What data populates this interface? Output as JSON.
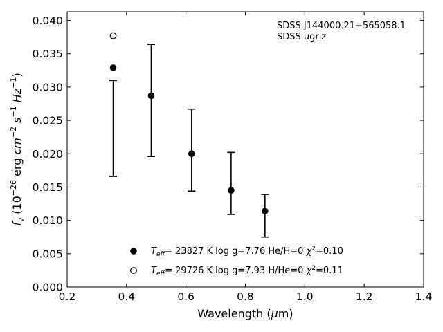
{
  "chart_data": {
    "type": "scatter",
    "xlabel": "Wavelength (μm)",
    "ylabel": "f_ν (10^-26 erg cm^-2 s^-1 Hz^-1)",
    "xlim": [
      0.2,
      1.4
    ],
    "ylim": [
      0.0,
      0.0413
    ],
    "x_ticks": [
      "0.2",
      "0.4",
      "0.6",
      "0.8",
      "1.0",
      "1.2",
      "1.4"
    ],
    "y_ticks": [
      "0.000",
      "0.005",
      "0.010",
      "0.015",
      "0.020",
      "0.025",
      "0.030",
      "0.035",
      "0.040"
    ],
    "grid": false,
    "annotations": [
      "SDSS J144000.21+565058.1",
      "SDSS ugriz"
    ],
    "observed": {
      "x": [
        0.355,
        0.483,
        0.619,
        0.752,
        0.866
      ],
      "y_low": [
        0.0166,
        0.0196,
        0.0144,
        0.0109,
        0.0075
      ],
      "y_high": [
        0.031,
        0.0364,
        0.0267,
        0.0202,
        0.0139
      ]
    },
    "series": [
      {
        "name": "T_eff= 23827 K  log g=7.76  He/H=0  χ²=0.10",
        "marker": "filled-circle",
        "x": [
          0.355,
          0.483,
          0.619,
          0.752,
          0.866
        ],
        "y": [
          0.0329,
          0.0287,
          0.02,
          0.0145,
          0.0114
        ]
      },
      {
        "name": "T_eff= 29726 K  log g=7.93  H/He=0  χ²=0.11",
        "marker": "open-circle",
        "x": [
          0.355
        ],
        "y": [
          0.0377
        ]
      }
    ],
    "legend_placement": "lower-center"
  }
}
